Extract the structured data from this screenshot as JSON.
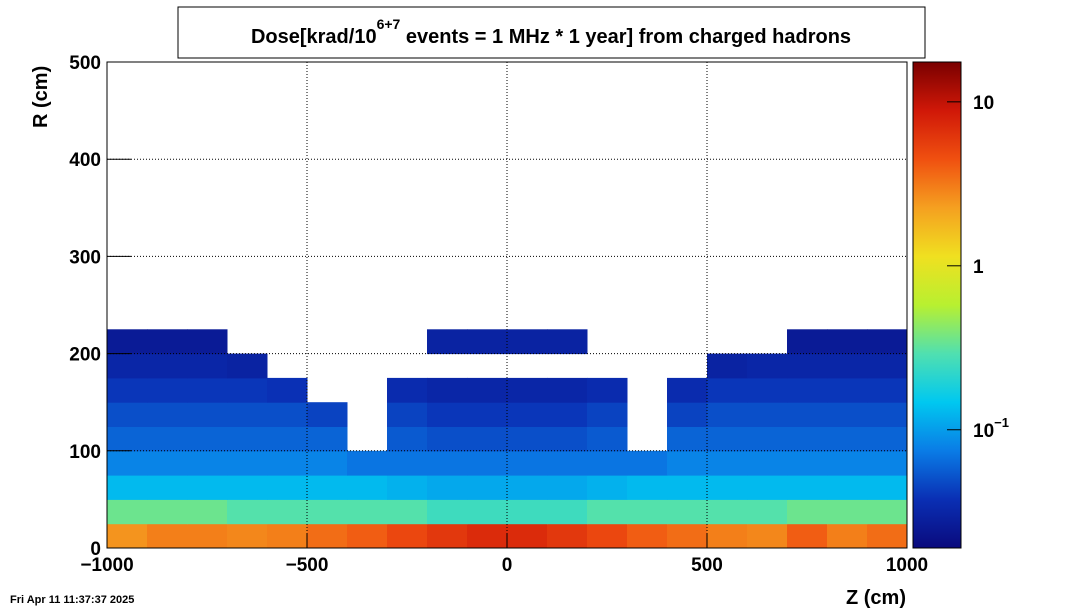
{
  "chart_data": {
    "type": "heatmap",
    "title": "Dose[krad/10",
    "title_superscript": "6+7",
    "title_rest": " events = 1 MHz * 1 year] from charged hadrons",
    "x_label": "Z (cm)",
    "y_label": "R (cm)",
    "timestamp": "Fri Apr 11 11:37:37 2025",
    "xlim": [
      -1000,
      1000
    ],
    "ylim": [
      0,
      500
    ],
    "xticks": [
      {
        "value": -1000,
        "label": "−1000"
      },
      {
        "value": -500,
        "label": "−500"
      },
      0,
      500,
      1000
    ],
    "yticks": [
      0,
      100,
      200,
      300,
      400,
      500
    ],
    "grid": true,
    "zlog": true,
    "zlim": [
      0.019,
      17.5
    ],
    "zticks": [
      {
        "value": 0.1,
        "label": "10",
        "exponent": "−1"
      },
      1,
      10
    ],
    "colorscale": [
      "#0a0a7d",
      "#0a2fb4",
      "#0a7ce6",
      "#00c8f0",
      "#50e0b0",
      "#b8f030",
      "#f0e020",
      "#f5a020",
      "#f05010",
      "#d01808",
      "#7a0000"
    ],
    "xbins": [
      -1000,
      -900,
      -800,
      -700,
      -600,
      -500,
      -400,
      -300,
      -200,
      -100,
      0,
      100,
      200,
      300,
      400,
      500,
      600,
      700,
      800,
      900,
      1000
    ],
    "ybins": [
      0,
      25,
      50,
      75,
      100,
      125,
      150,
      175,
      200,
      225
    ],
    "z": [
      [
        2.5,
        3,
        3,
        2.8,
        3,
        3.5,
        4,
        5,
        6,
        7,
        7,
        6,
        5,
        4,
        3.5,
        3,
        2.8,
        4,
        3,
        3.5
      ],
      [
        0.35,
        0.35,
        0.35,
        0.3,
        0.3,
        0.3,
        0.3,
        0.3,
        0.25,
        0.25,
        0.25,
        0.25,
        0.3,
        0.3,
        0.3,
        0.3,
        0.3,
        0.35,
        0.35,
        0.35
      ],
      [
        0.13,
        0.13,
        0.13,
        0.13,
        0.13,
        0.13,
        0.13,
        0.12,
        0.11,
        0.11,
        0.11,
        0.11,
        0.12,
        0.13,
        0.13,
        0.13,
        0.13,
        0.13,
        0.13,
        0.13
      ],
      [
        0.08,
        0.08,
        0.08,
        0.08,
        0.08,
        0.08,
        0.07,
        0.07,
        0.07,
        0.07,
        0.07,
        0.07,
        0.07,
        0.07,
        0.08,
        0.08,
        0.08,
        0.08,
        0.08,
        0.08
      ],
      [
        0.06,
        0.06,
        0.06,
        0.06,
        0.06,
        0.06,
        null,
        0.055,
        0.05,
        0.05,
        0.05,
        0.05,
        0.055,
        null,
        0.06,
        0.06,
        0.06,
        0.06,
        0.06,
        0.06
      ],
      [
        0.05,
        0.05,
        0.05,
        0.05,
        0.05,
        0.045,
        null,
        0.045,
        0.04,
        0.04,
        0.04,
        0.04,
        0.045,
        null,
        0.045,
        0.05,
        0.05,
        0.05,
        0.05,
        0.05
      ],
      [
        0.04,
        0.04,
        0.04,
        0.04,
        0.038,
        null,
        null,
        0.035,
        0.032,
        0.032,
        0.032,
        0.032,
        0.035,
        null,
        0.035,
        0.04,
        0.04,
        0.04,
        0.04,
        0.04
      ],
      [
        0.032,
        0.032,
        0.032,
        0.03,
        null,
        null,
        null,
        null,
        null,
        null,
        null,
        null,
        null,
        null,
        null,
        0.03,
        0.032,
        0.032,
        0.032,
        0.032
      ],
      [
        0.026,
        0.026,
        0.026,
        null,
        null,
        null,
        null,
        null,
        0.03,
        0.03,
        0.03,
        0.03,
        null,
        null,
        null,
        null,
        null,
        0.026,
        0.026,
        0.026
      ]
    ]
  }
}
